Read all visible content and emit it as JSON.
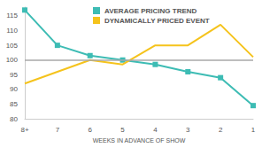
{
  "chart_data": {
    "type": "line",
    "categories": [
      "8+",
      "7",
      "6",
      "5",
      "4",
      "3",
      "2",
      "1"
    ],
    "x_label": "WEEKS IN ADVANCE OF SHOW",
    "series": [
      {
        "name": "AVERAGE PRICING TREND",
        "color": "#3dbcb4",
        "marker": "square",
        "values": [
          117,
          105,
          101.5,
          100,
          98.5,
          96,
          94,
          84.5
        ]
      },
      {
        "name": "DYNAMICALLY PRICED EVENT",
        "color": "#f5c31c",
        "marker": "none",
        "values": [
          92,
          96,
          100,
          98.5,
          105,
          105,
          112,
          101
        ]
      }
    ],
    "ylim": [
      80,
      118
    ],
    "yticks": [
      80,
      85,
      90,
      95,
      100,
      105,
      110,
      115
    ],
    "reference_line": 100,
    "grid": false,
    "legend": "top"
  }
}
